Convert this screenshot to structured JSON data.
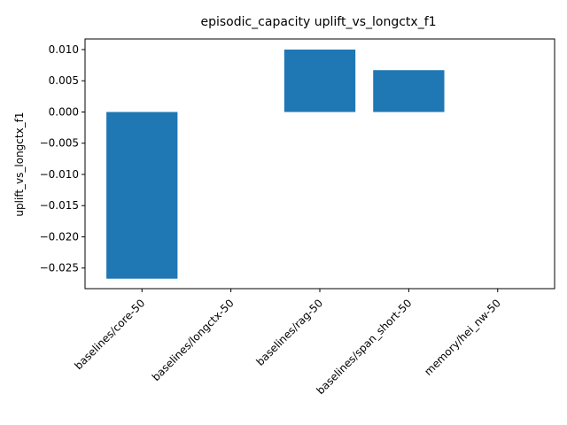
{
  "chart_data": {
    "type": "bar",
    "title": "episodic_capacity uplift_vs_longctx_f1",
    "xlabel": "",
    "ylabel": "uplift_vs_longctx_f1",
    "categories": [
      "baselines/core-50",
      "baselines/longctx-50",
      "baselines/rag-50",
      "baselines/span_short-50",
      "memory/hei_nw-50"
    ],
    "values": [
      -0.0267,
      0.0,
      0.01,
      0.0067,
      0.0
    ],
    "ylim": [
      -0.0283,
      0.0117
    ],
    "yticks": [
      -0.025,
      -0.02,
      -0.015,
      -0.01,
      -0.005,
      0.0,
      0.005,
      0.01
    ],
    "ytick_labels": [
      "−0.025",
      "−0.020",
      "−0.015",
      "−0.010",
      "−0.005",
      "0.000",
      "0.005",
      "0.010"
    ],
    "bar_color": "#1f77b4",
    "grid": false,
    "legend": "none"
  }
}
